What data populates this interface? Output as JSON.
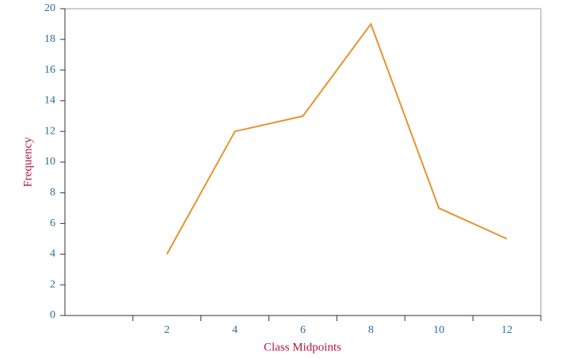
{
  "chart_data": {
    "type": "line",
    "x_label": "Class Midpoints",
    "y_label": "Frequency",
    "categories": [
      null,
      "2",
      "4",
      "6",
      "8",
      "10",
      "12"
    ],
    "series": [
      {
        "name": "Frequency",
        "color": "#e8922e",
        "values": [
          null,
          4,
          12,
          13,
          19,
          7,
          5
        ]
      }
    ],
    "ylim": [
      0,
      20
    ],
    "yticks": [
      0,
      2,
      4,
      6,
      8,
      10,
      12,
      14,
      16,
      18,
      20
    ]
  }
}
